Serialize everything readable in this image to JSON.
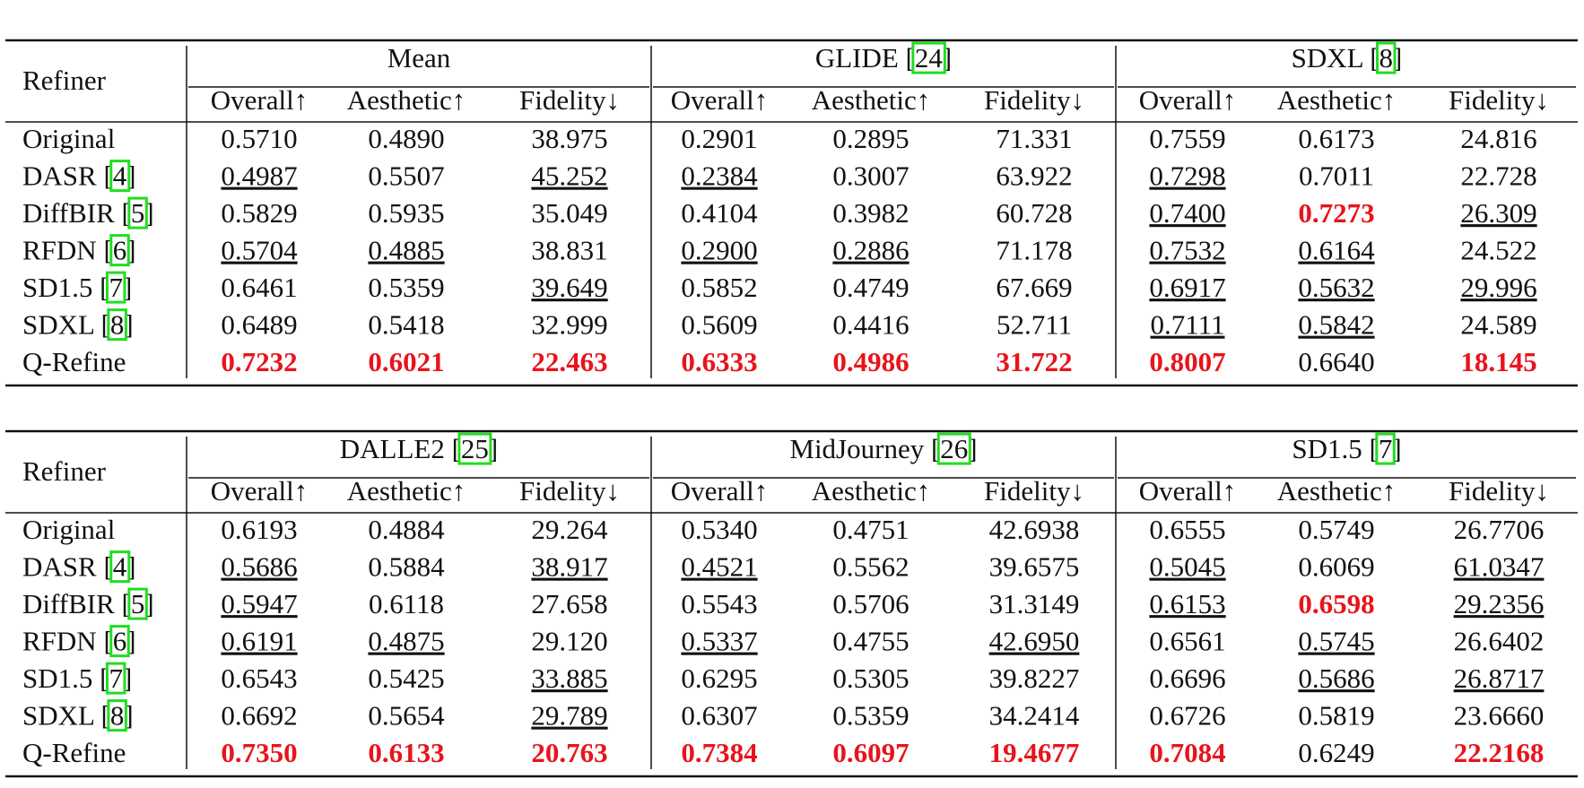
{
  "tables": [
    {
      "header": "Refiner",
      "columns": [
        "Overall↑",
        "Aesthetic↑",
        "Fidelity↓"
      ],
      "groups": [
        {
          "label": [
            "Mean"
          ]
        },
        {
          "label": [
            "GLIDE [",
            "24",
            "]"
          ]
        },
        {
          "label": [
            "SDXL [",
            "8",
            "]"
          ]
        }
      ],
      "rows": [
        {
          "label": [
            "Original"
          ],
          "cells": [
            "0.5710",
            "0.4890",
            "38.975",
            "0.2901",
            "0.2895",
            "71.331",
            "0.7559",
            "0.6173",
            "24.816"
          ]
        },
        {
          "label": [
            "DASR [",
            "4",
            "]"
          ],
          "cells": [
            {
              "text": "0.4987",
              "style": "underline"
            },
            "0.5507",
            {
              "text": "45.252",
              "style": "underline"
            },
            {
              "text": "0.2384",
              "style": "underline"
            },
            "0.3007",
            "63.922",
            {
              "text": "0.7298",
              "style": "underline"
            },
            "0.7011",
            "22.728"
          ]
        },
        {
          "label": [
            "DiffBIR [",
            "5",
            "]"
          ],
          "cells": [
            "0.5829",
            "0.5935",
            "35.049",
            "0.4104",
            "0.3982",
            "60.728",
            {
              "text": "0.7400",
              "style": "underline"
            },
            {
              "text": "0.7273",
              "style": "best"
            },
            {
              "text": "26.309",
              "style": "underline"
            }
          ]
        },
        {
          "label": [
            "RFDN [",
            "6",
            "]"
          ],
          "cells": [
            {
              "text": "0.5704",
              "style": "underline"
            },
            {
              "text": "0.4885",
              "style": "underline"
            },
            "38.831",
            {
              "text": "0.2900",
              "style": "underline"
            },
            {
              "text": "0.2886",
              "style": "underline"
            },
            "71.178",
            {
              "text": "0.7532",
              "style": "underline"
            },
            {
              "text": "0.6164",
              "style": "underline"
            },
            "24.522"
          ]
        },
        {
          "label": [
            "SD1.5 [",
            "7",
            "]"
          ],
          "cells": [
            "0.6461",
            "0.5359",
            {
              "text": "39.649",
              "style": "underline"
            },
            "0.5852",
            "0.4749",
            "67.669",
            {
              "text": "0.6917",
              "style": "underline"
            },
            {
              "text": "0.5632",
              "style": "underline"
            },
            {
              "text": "29.996",
              "style": "underline"
            }
          ]
        },
        {
          "label": [
            "SDXL [",
            "8",
            "]"
          ],
          "cells": [
            "0.6489",
            "0.5418",
            "32.999",
            "0.5609",
            "0.4416",
            "52.711",
            {
              "text": "0.7111",
              "style": "underline"
            },
            {
              "text": "0.5842",
              "style": "underline"
            },
            "24.589"
          ]
        },
        {
          "label": [
            "Q-Refine"
          ],
          "cells": [
            {
              "text": "0.7232",
              "style": "best"
            },
            {
              "text": "0.6021",
              "style": "best"
            },
            {
              "text": "22.463",
              "style": "best"
            },
            {
              "text": "0.6333",
              "style": "best"
            },
            {
              "text": "0.4986",
              "style": "best"
            },
            {
              "text": "31.722",
              "style": "best"
            },
            {
              "text": "0.8007",
              "style": "best"
            },
            "0.6640",
            {
              "text": "18.145",
              "style": "best"
            }
          ]
        }
      ]
    },
    {
      "header": "Refiner",
      "columns": [
        "Overall↑",
        "Aesthetic↑",
        "Fidelity↓"
      ],
      "groups": [
        {
          "label": [
            "DALLE2 [",
            "25",
            "]"
          ]
        },
        {
          "label": [
            "MidJourney [",
            "26",
            "]"
          ]
        },
        {
          "label": [
            "SD1.5 [",
            "7",
            "]"
          ]
        }
      ],
      "rows": [
        {
          "label": [
            "Original"
          ],
          "cells": [
            "0.6193",
            "0.4884",
            "29.264",
            "0.5340",
            "0.4751",
            "42.6938",
            "0.6555",
            "0.5749",
            "26.7706"
          ]
        },
        {
          "label": [
            "DASR [",
            "4",
            "]"
          ],
          "cells": [
            {
              "text": "0.5686",
              "style": "underline"
            },
            "0.5884",
            {
              "text": "38.917",
              "style": "underline"
            },
            {
              "text": "0.4521",
              "style": "underline"
            },
            "0.5562",
            "39.6575",
            {
              "text": "0.5045",
              "style": "underline"
            },
            "0.6069",
            {
              "text": "61.0347",
              "style": "underline"
            }
          ]
        },
        {
          "label": [
            "DiffBIR [",
            "5",
            "]"
          ],
          "cells": [
            {
              "text": "0.5947",
              "style": "underline"
            },
            "0.6118",
            "27.658",
            "0.5543",
            "0.5706",
            "31.3149",
            {
              "text": "0.6153",
              "style": "underline"
            },
            {
              "text": "0.6598",
              "style": "best"
            },
            {
              "text": "29.2356",
              "style": "underline"
            }
          ]
        },
        {
          "label": [
            "RFDN [",
            "6",
            "]"
          ],
          "cells": [
            {
              "text": "0.6191",
              "style": "underline"
            },
            {
              "text": "0.4875",
              "style": "underline"
            },
            "29.120",
            {
              "text": "0.5337",
              "style": "underline"
            },
            "0.4755",
            {
              "text": "42.6950",
              "style": "underline"
            },
            "0.6561",
            {
              "text": "0.5745",
              "style": "underline"
            },
            "26.6402"
          ]
        },
        {
          "label": [
            "SD1.5 [",
            "7",
            "]"
          ],
          "cells": [
            "0.6543",
            "0.5425",
            {
              "text": "33.885",
              "style": "underline"
            },
            "0.6295",
            "0.5305",
            "39.8227",
            "0.6696",
            {
              "text": "0.5686",
              "style": "underline"
            },
            {
              "text": "26.8717",
              "style": "underline"
            }
          ]
        },
        {
          "label": [
            "SDXL [",
            "8",
            "]"
          ],
          "cells": [
            "0.6692",
            "0.5654",
            {
              "text": "29.789",
              "style": "underline"
            },
            "0.6307",
            "0.5359",
            "34.2414",
            "0.6726",
            "0.5819",
            "23.6660"
          ]
        },
        {
          "label": [
            "Q-Refine"
          ],
          "cells": [
            {
              "text": "0.7350",
              "style": "best"
            },
            {
              "text": "0.6133",
              "style": "best"
            },
            {
              "text": "20.763",
              "style": "best"
            },
            {
              "text": "0.7384",
              "style": "best"
            },
            {
              "text": "0.6097",
              "style": "best"
            },
            {
              "text": "19.4677",
              "style": "best"
            },
            {
              "text": "0.7084",
              "style": "best"
            },
            "0.6249",
            {
              "text": "22.2168",
              "style": "best"
            }
          ]
        }
      ]
    }
  ]
}
